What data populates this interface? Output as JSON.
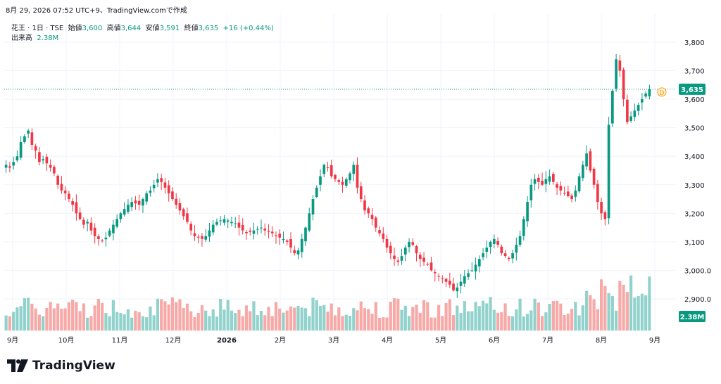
{
  "header": {
    "timestamp": "8月 29, 2026 07:52 UTC+9、TradingView.comで作成"
  },
  "legend": {
    "symbol": "花王 · 1日 · TSE",
    "open_label": "始値",
    "open_value": "3,600",
    "high_label": "高値",
    "high_value": "3,644",
    "low_label": "安値",
    "low_value": "3,591",
    "close_label": "終値",
    "close_value": "3,635",
    "change": "+16 (+0.44%)",
    "volume_label": "出来高",
    "volume_value": "2.38M"
  },
  "price_tag": "3,635",
  "volume_tag": "2.38M",
  "dividend_marker": "D",
  "brand": "TradingView",
  "colors": {
    "up": "#089981",
    "down": "#f23645",
    "up_volume": "#92d2cc",
    "down_volume": "#f7a9a7",
    "grid": "#f0f3fa",
    "text": "#131722"
  },
  "chart_data": {
    "type": "candlestick",
    "y_axis": {
      "ticks": [
        2900,
        3000,
        3100,
        3200,
        3300,
        3400,
        3500,
        3600,
        3700,
        3800
      ],
      "tick_labels": [
        "2,900.0",
        "3,000.0",
        "3,100",
        "3,200",
        "3,300",
        "3,400",
        "3,500",
        "3,600",
        "3,700",
        "3,800"
      ],
      "range": [
        2870,
        3830
      ]
    },
    "x_axis": {
      "labels": [
        "9月",
        "10月",
        "11月",
        "12月",
        "2026",
        "2月",
        "3月",
        "4月",
        "5月",
        "6月",
        "7月",
        "8月",
        "9月"
      ]
    },
    "last_close": 3635,
    "candles_close": [
      3370,
      3360,
      3380,
      3400,
      3450,
      3470,
      3490,
      3440,
      3420,
      3380,
      3390,
      3375,
      3360,
      3340,
      3300,
      3280,
      3270,
      3250,
      3230,
      3200,
      3180,
      3160,
      3170,
      3140,
      3120,
      3110,
      3105,
      3115,
      3140,
      3160,
      3180,
      3200,
      3215,
      3230,
      3240,
      3235,
      3230,
      3250,
      3270,
      3280,
      3300,
      3320,
      3310,
      3290,
      3270,
      3250,
      3230,
      3210,
      3190,
      3170,
      3140,
      3120,
      3115,
      3110,
      3120,
      3140,
      3160,
      3170,
      3175,
      3180,
      3175,
      3170,
      3165,
      3150,
      3140,
      3130,
      3135,
      3140,
      3145,
      3150,
      3140,
      3135,
      3130,
      3120,
      3115,
      3110,
      3100,
      3080,
      3060,
      3070,
      3110,
      3150,
      3200,
      3250,
      3290,
      3330,
      3370,
      3360,
      3330,
      3320,
      3310,
      3300,
      3320,
      3340,
      3370,
      3290,
      3250,
      3210,
      3200,
      3180,
      3150,
      3130,
      3110,
      3080,
      3060,
      3040,
      3030,
      3050,
      3080,
      3100,
      3090,
      3060,
      3040,
      3030,
      3020,
      3000,
      2990,
      2980,
      2970,
      2960,
      2950,
      2930,
      2940,
      2960,
      2980,
      2990,
      3000,
      3020,
      3040,
      3060,
      3080,
      3100,
      3110,
      3090,
      3060,
      3050,
      3040,
      3060,
      3090,
      3120,
      3180,
      3240,
      3300,
      3320,
      3310,
      3300,
      3320,
      3330,
      3310,
      3290,
      3280,
      3270,
      3260,
      3250,
      3280,
      3330,
      3370,
      3410,
      3350,
      3300,
      3240,
      3200,
      3180,
      3510,
      3630,
      3740,
      3700,
      3600,
      3520,
      3540,
      3560,
      3580,
      3600,
      3620,
      3635
    ],
    "volume_current": "2.38M"
  }
}
